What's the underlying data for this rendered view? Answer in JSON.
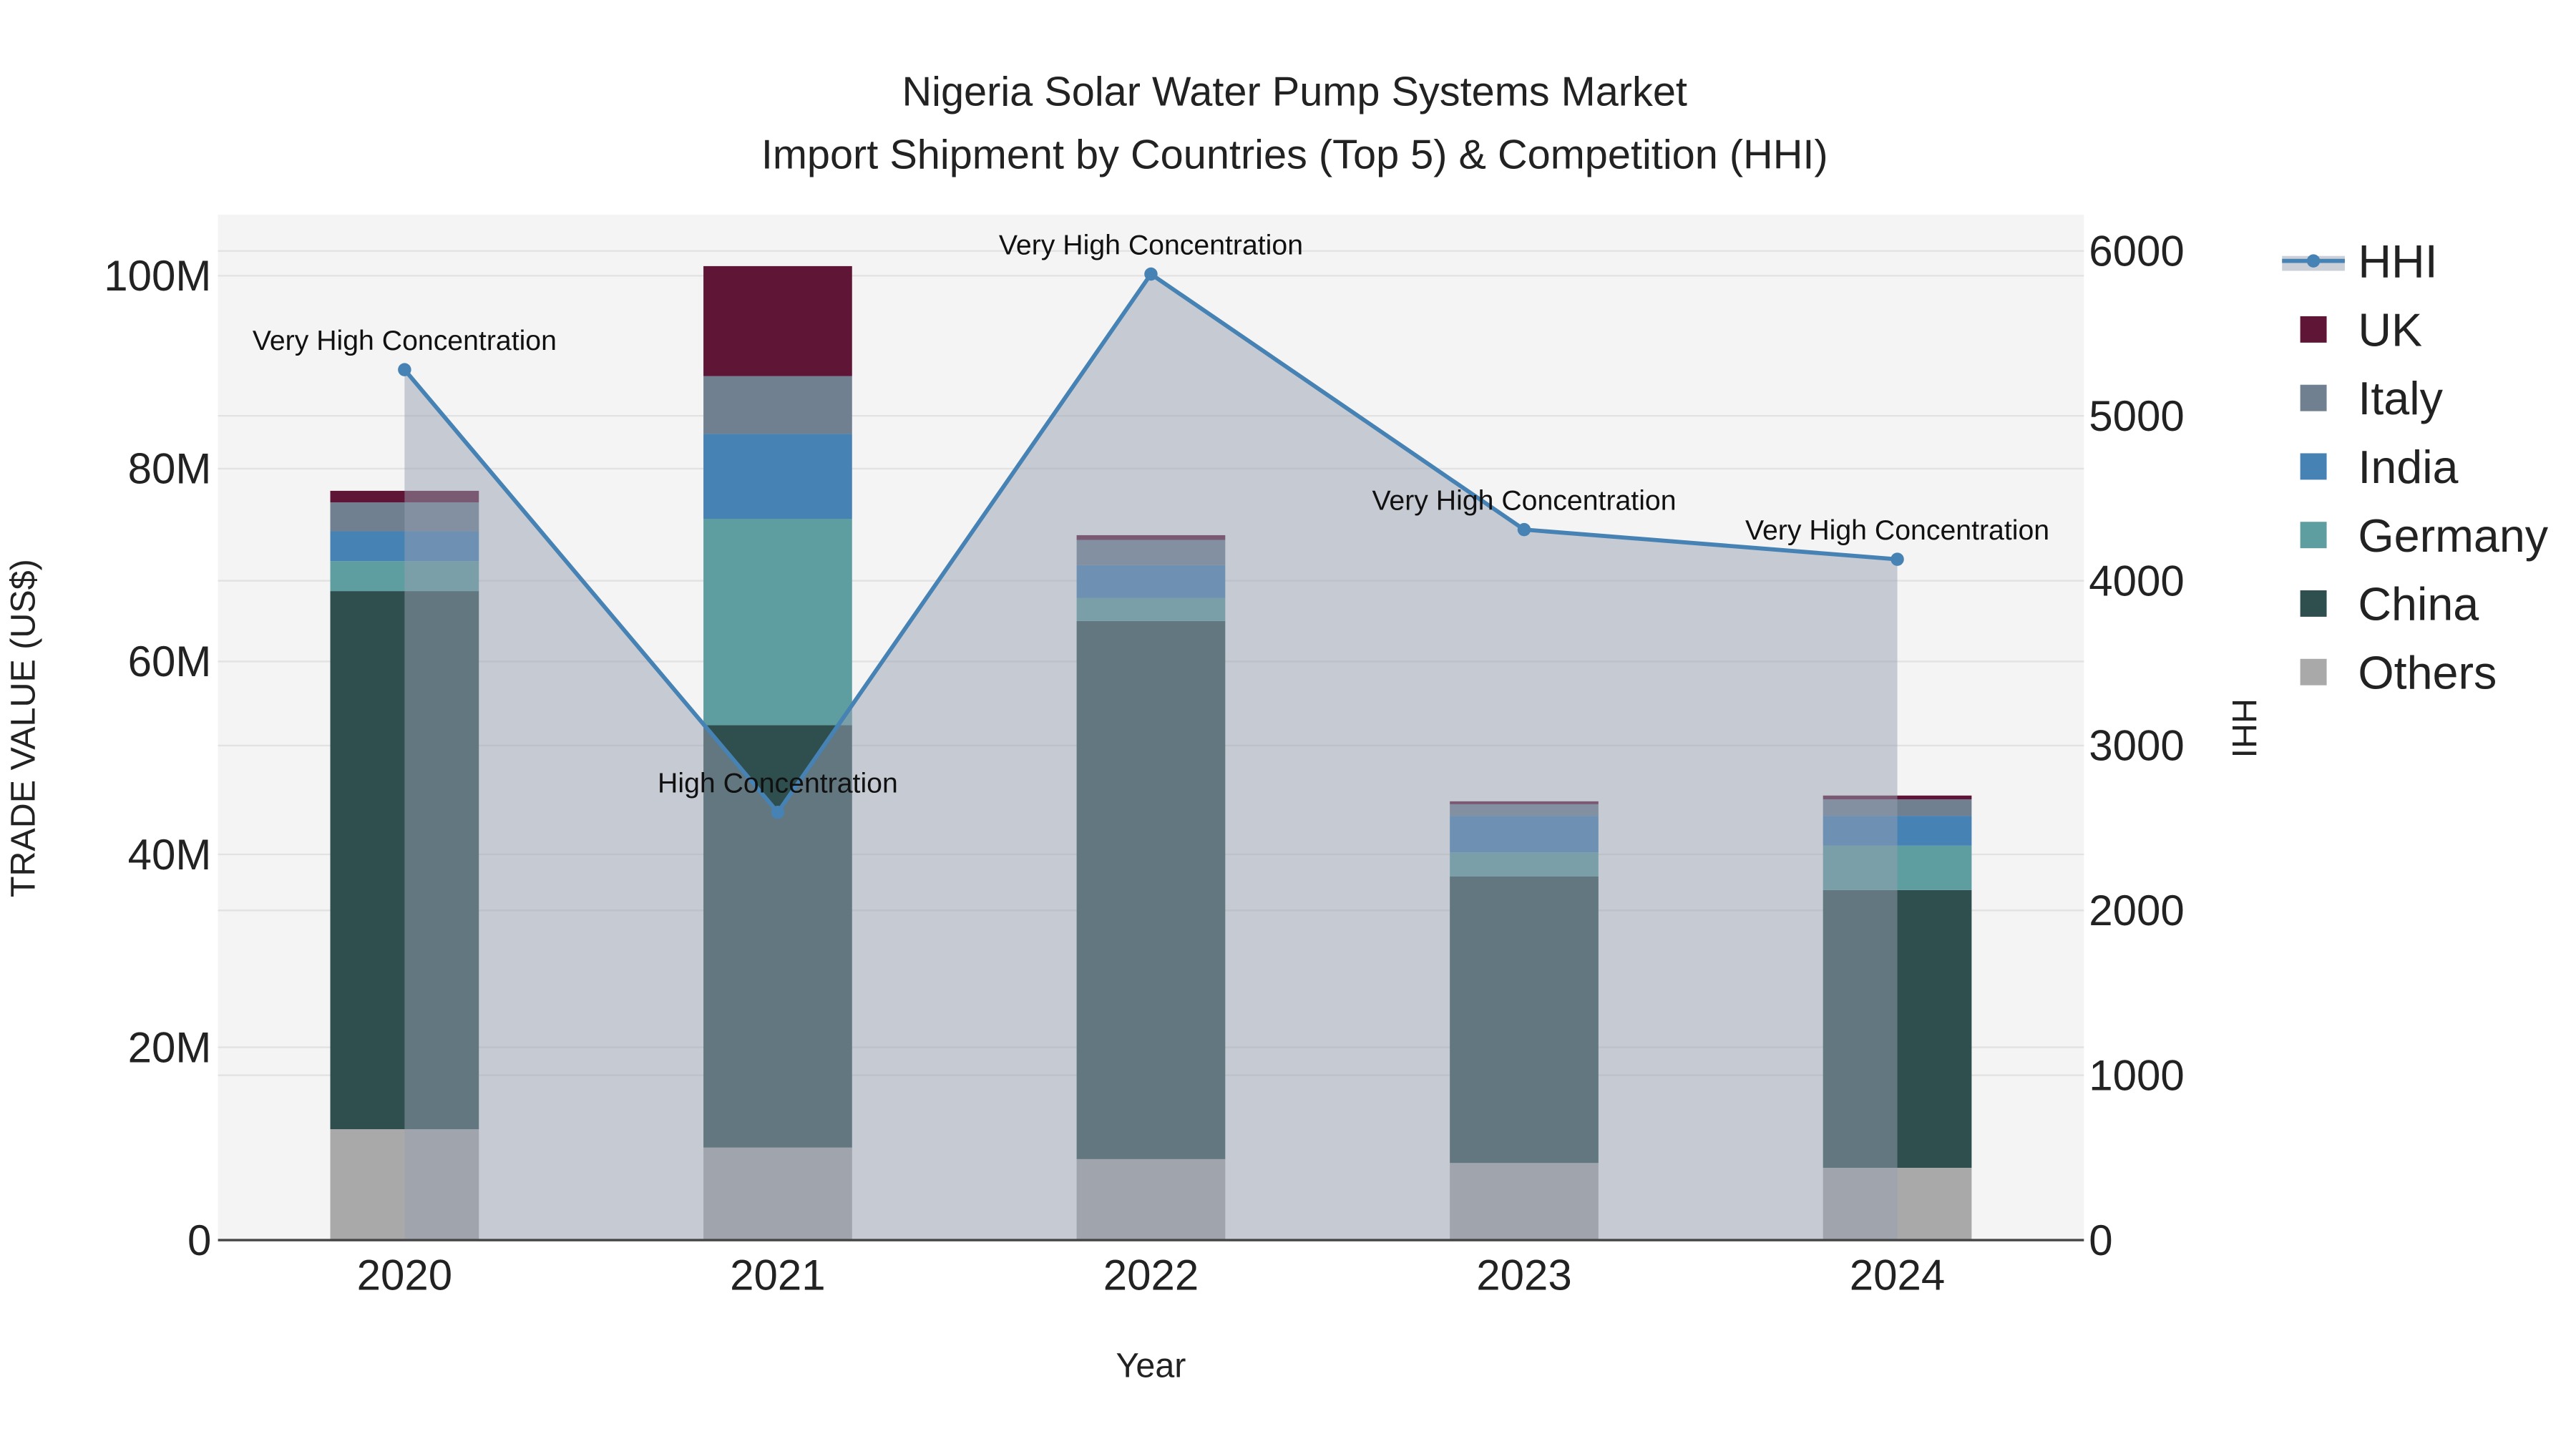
{
  "chart_data": {
    "type": "bar",
    "stacked": true,
    "title_line1": "Nigeria Solar Water Pump Systems Market",
    "title_line2": "Import Shipment by Countries (Top 5) & Competition (HHI)",
    "xlabel": "Year",
    "ylabel": "TRADE VALUE (US$)",
    "y2label": "HHI",
    "categories": [
      "2020",
      "2021",
      "2022",
      "2023",
      "2024"
    ],
    "ylim": [
      0,
      105
    ],
    "y_ticks": [
      0,
      20,
      40,
      60,
      80,
      100
    ],
    "y_tick_labels": [
      "0",
      "20M",
      "40M",
      "60M",
      "80M",
      "100M"
    ],
    "y2lim": [
      0,
      6200
    ],
    "y2_ticks": [
      0,
      1000,
      2000,
      3000,
      4000,
      5000,
      6000
    ],
    "y2_tick_labels": [
      "0",
      "1000",
      "2000",
      "3000",
      "4000",
      "5000",
      "6000"
    ],
    "units": "Million US$",
    "series": [
      {
        "name": "Others",
        "color": "#a9a9a9",
        "values": [
          11.5,
          9.6,
          8.4,
          8.0,
          7.5
        ]
      },
      {
        "name": "China",
        "color": "#2f4f4f",
        "values": [
          55.8,
          43.8,
          55.8,
          29.7,
          28.8
        ]
      },
      {
        "name": "Germany",
        "color": "#5f9ea0",
        "values": [
          3.1,
          21.4,
          2.4,
          2.5,
          4.6
        ]
      },
      {
        "name": "India",
        "color": "#4682b4",
        "values": [
          3.1,
          8.8,
          3.4,
          3.8,
          3.1
        ]
      },
      {
        "name": "Italy",
        "color": "#708090",
        "values": [
          3.0,
          6.0,
          2.6,
          1.2,
          1.7
        ]
      },
      {
        "name": "UK",
        "color": "#5f1535",
        "values": [
          1.2,
          11.4,
          0.5,
          0.3,
          0.4
        ]
      }
    ],
    "hhi": {
      "name": "HHI",
      "color": "#4682b4",
      "values": [
        5280,
        2595,
        5860,
        4310,
        4130
      ],
      "annotations": [
        "Very High Concentration",
        "High Concentration",
        "Very High Concentration",
        "Very High Concentration",
        "Very High Concentration"
      ]
    },
    "legend": [
      "HHI",
      "UK",
      "Italy",
      "India",
      "Germany",
      "China",
      "Others"
    ],
    "legend_position": "right",
    "grid": true
  }
}
